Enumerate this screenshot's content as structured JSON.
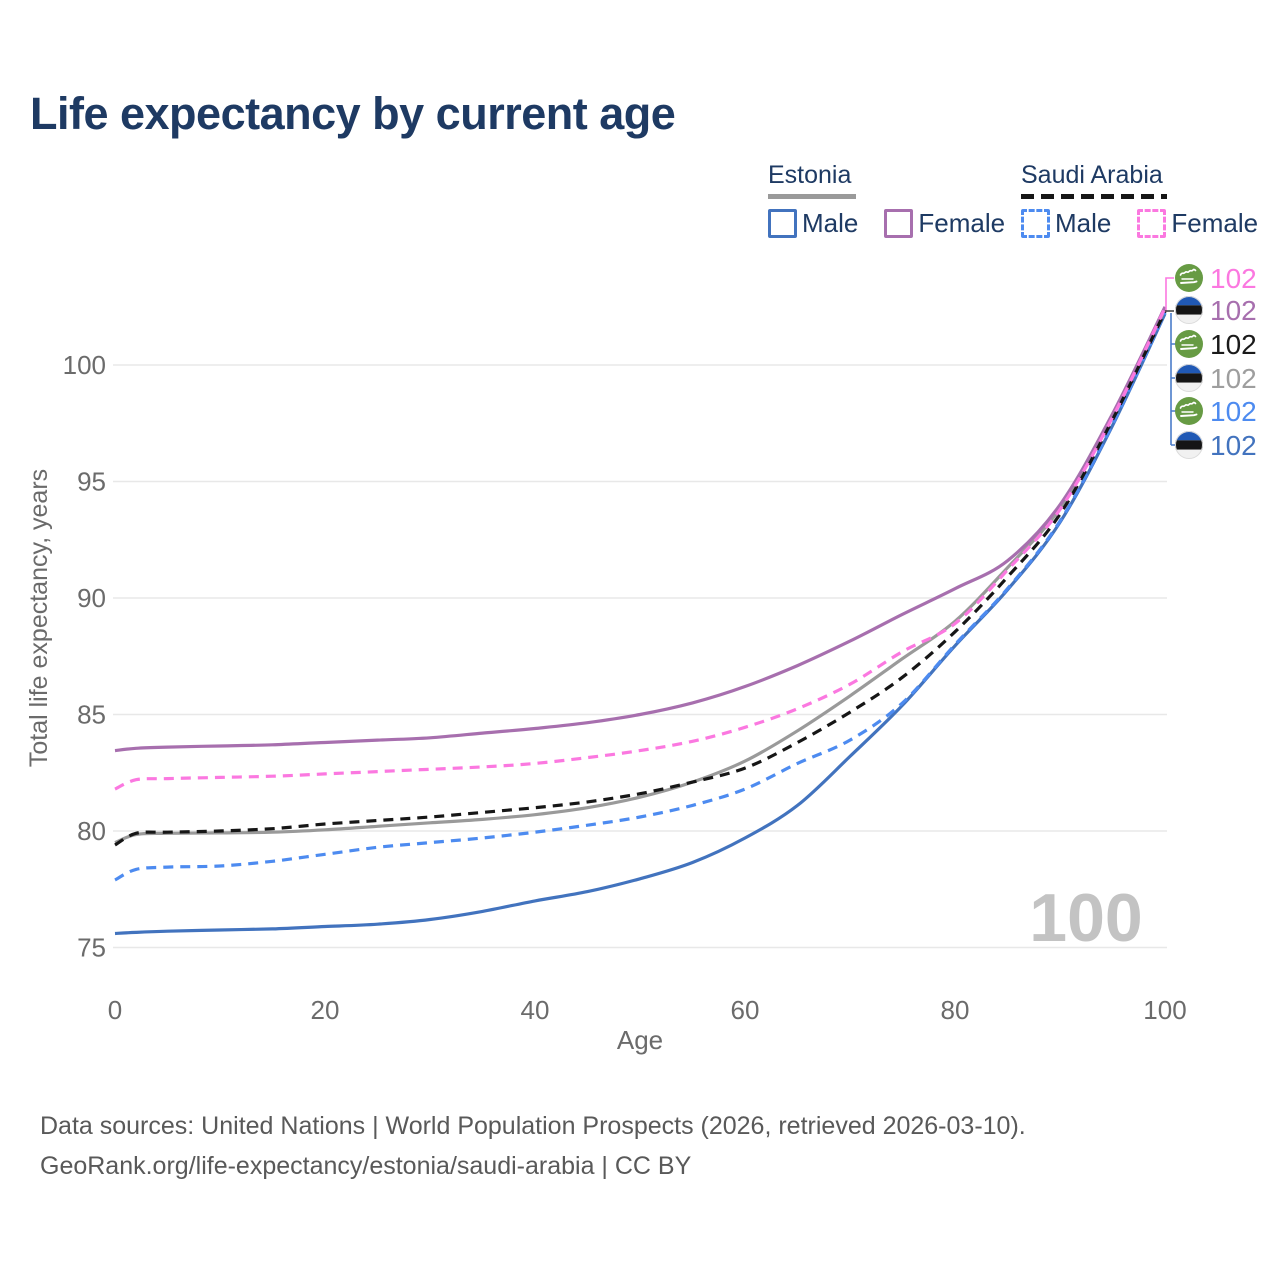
{
  "title": "Life expectancy by current age",
  "legend": {
    "estonia": {
      "title": "Estonia",
      "male_label": "Male",
      "female_label": "Female"
    },
    "saudi_arabia": {
      "title": "Saudi Arabia",
      "male_label": "Male",
      "female_label": "Female"
    }
  },
  "footer": {
    "line1": "Data sources: United Nations | World Population Prospects (2026, retrieved 2026-03-10).",
    "line2": "GeoRank.org/life-expectancy/estonia/saudi-arabia | CC BY"
  },
  "colors": {
    "title_text": "#1e3a63",
    "axis_text": "#6b6b6b",
    "gridline": "#e8e8e8",
    "watermark": "#c3c3c3",
    "estonia_male": "#4273be",
    "estonia_female": "#a76fae",
    "estonia_total": "#9a9a9a",
    "saudi_male": "#4d8bf0",
    "saudi_female": "#fb78e0",
    "saudi_total": "#161616",
    "connector_top": "#fb78e0",
    "connector_bottom": "#4a7cc9",
    "estonia_flag_blue": "#2059b5",
    "estonia_flag_black": "#151515",
    "estonia_flag_white": "#f1f1f1",
    "saudi_flag_green": "#679b44"
  },
  "chart_data": {
    "type": "line",
    "title": "Life expectancy by current age",
    "xlabel": "Age",
    "ylabel": "Total life expectancy, years",
    "xlim": [
      0,
      100
    ],
    "ylim": [
      74,
      103.5
    ],
    "xticks": [
      0,
      20,
      40,
      60,
      80,
      100
    ],
    "yticks": [
      75,
      80,
      85,
      90,
      95,
      100
    ],
    "grid": "horizontal",
    "legend_position": "top-right",
    "age_counter": "100",
    "x": [
      0,
      2,
      5,
      10,
      15,
      20,
      25,
      30,
      35,
      40,
      45,
      50,
      55,
      60,
      65,
      70,
      75,
      80,
      85,
      90,
      95,
      100
    ],
    "series": [
      {
        "name": "Estonia Male",
        "country": "Estonia",
        "sex": "male",
        "style": "solid",
        "color": "#4273be",
        "values": [
          75.6,
          75.65,
          75.7,
          75.75,
          75.8,
          75.9,
          76.0,
          76.2,
          76.55,
          77.0,
          77.4,
          77.95,
          78.65,
          79.7,
          81.1,
          83.2,
          85.4,
          87.95,
          90.35,
          93.25,
          97.4,
          102.2
        ]
      },
      {
        "name": "Estonia Total",
        "country": "Estonia",
        "sex": "total",
        "style": "solid",
        "color": "#9a9a9a",
        "values": [
          79.5,
          79.85,
          79.9,
          79.92,
          79.95,
          80.05,
          80.2,
          80.35,
          80.5,
          80.7,
          81.0,
          81.45,
          82.1,
          83.0,
          84.3,
          85.8,
          87.4,
          89.0,
          91.3,
          93.85,
          97.8,
          102.4
        ]
      },
      {
        "name": "Estonia Female",
        "country": "Estonia",
        "sex": "female",
        "style": "solid",
        "color": "#a76fae",
        "values": [
          83.45,
          83.55,
          83.6,
          83.65,
          83.7,
          83.8,
          83.9,
          84.0,
          84.2,
          84.4,
          84.65,
          85.0,
          85.5,
          86.2,
          87.1,
          88.15,
          89.3,
          90.4,
          91.6,
          94.0,
          97.9,
          102.5
        ]
      },
      {
        "name": "Saudi Arabia Male",
        "country": "Saudi Arabia",
        "sex": "male",
        "style": "dashed",
        "color": "#4d8bf0",
        "values": [
          77.9,
          78.35,
          78.45,
          78.5,
          78.7,
          79.0,
          79.3,
          79.5,
          79.7,
          79.95,
          80.25,
          80.6,
          81.1,
          81.8,
          82.9,
          83.9,
          85.5,
          88.0,
          90.4,
          93.3,
          97.45,
          102.25
        ]
      },
      {
        "name": "Saudi Arabia Total",
        "country": "Saudi Arabia",
        "sex": "total",
        "style": "dashed",
        "color": "#161616",
        "values": [
          79.4,
          79.9,
          79.95,
          80.0,
          80.1,
          80.3,
          80.45,
          80.6,
          80.8,
          81.0,
          81.25,
          81.6,
          82.1,
          82.7,
          83.8,
          85.1,
          86.6,
          88.55,
          90.9,
          93.6,
          97.65,
          102.3
        ]
      },
      {
        "name": "Saudi Arabia Female",
        "country": "Saudi Arabia",
        "sex": "female",
        "style": "dashed",
        "color": "#fb78e0",
        "values": [
          81.8,
          82.2,
          82.25,
          82.3,
          82.35,
          82.45,
          82.55,
          82.65,
          82.75,
          82.9,
          83.15,
          83.45,
          83.85,
          84.45,
          85.25,
          86.3,
          87.7,
          88.9,
          91.2,
          93.8,
          97.75,
          102.45
        ]
      }
    ],
    "end_labels": [
      {
        "flag": "saudi-arabia",
        "value": "102",
        "color": "#fb78e0",
        "series": "Saudi Arabia Female"
      },
      {
        "flag": "estonia",
        "value": "102",
        "color": "#a76fae",
        "series": "Estonia Female"
      },
      {
        "flag": "saudi-arabia",
        "value": "102",
        "color": "#1a1a1a",
        "series": "Saudi Arabia Total"
      },
      {
        "flag": "estonia",
        "value": "102",
        "color": "#9e9e9e",
        "series": "Estonia Total"
      },
      {
        "flag": "saudi-arabia",
        "value": "102",
        "color": "#4d8bf0",
        "series": "Saudi Arabia Male"
      },
      {
        "flag": "estonia",
        "value": "102",
        "color": "#4273be",
        "series": "Estonia Male"
      }
    ]
  }
}
